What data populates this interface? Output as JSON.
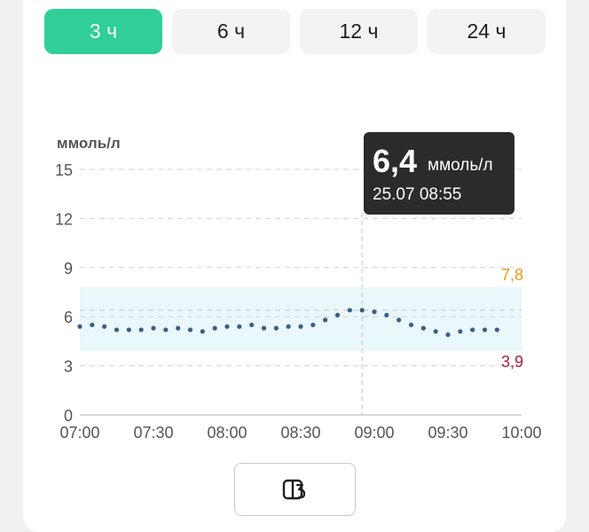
{
  "tabs": [
    {
      "label": "3 ч",
      "active": true
    },
    {
      "label": "6 ч",
      "active": false
    },
    {
      "label": "12 ч",
      "active": false
    },
    {
      "label": "24 ч",
      "active": false
    }
  ],
  "colors": {
    "accent": "#2fcf97",
    "upper_limit": "#e89a1c",
    "lower_limit": "#a3203f",
    "dots": "#3a5f86",
    "target_band": "#eaf7fb",
    "tooltip_bg": "#2b2b2b"
  },
  "tooltip": {
    "value": "6,4",
    "unit": "ммоль/л",
    "datetime": "25.07 08:55"
  },
  "chart_data": {
    "type": "scatter",
    "ylabel": "ммоль/л",
    "yticks": [
      "0",
      "3",
      "6",
      "9",
      "12",
      "15"
    ],
    "xticks": [
      "07:00",
      "07:30",
      "08:00",
      "08:30",
      "09:00",
      "09:30",
      "10:00"
    ],
    "ylim": [
      0,
      15
    ],
    "xlim": [
      "07:00",
      "10:00"
    ],
    "grid": true,
    "target_range": {
      "low": 3.9,
      "high": 7.8,
      "low_label": "3,9",
      "high_label": "7,8"
    },
    "selected": {
      "x": "08:55",
      "y": 6.4
    },
    "points": [
      {
        "x": "07:00",
        "y": 5.4
      },
      {
        "x": "07:05",
        "y": 5.5
      },
      {
        "x": "07:10",
        "y": 5.4
      },
      {
        "x": "07:15",
        "y": 5.2
      },
      {
        "x": "07:20",
        "y": 5.2
      },
      {
        "x": "07:25",
        "y": 5.2
      },
      {
        "x": "07:30",
        "y": 5.3
      },
      {
        "x": "07:35",
        "y": 5.2
      },
      {
        "x": "07:40",
        "y": 5.3
      },
      {
        "x": "07:45",
        "y": 5.2
      },
      {
        "x": "07:50",
        "y": 5.1
      },
      {
        "x": "07:55",
        "y": 5.3
      },
      {
        "x": "08:00",
        "y": 5.4
      },
      {
        "x": "08:05",
        "y": 5.4
      },
      {
        "x": "08:10",
        "y": 5.5
      },
      {
        "x": "08:15",
        "y": 5.3
      },
      {
        "x": "08:20",
        "y": 5.3
      },
      {
        "x": "08:25",
        "y": 5.4
      },
      {
        "x": "08:30",
        "y": 5.4
      },
      {
        "x": "08:35",
        "y": 5.5
      },
      {
        "x": "08:40",
        "y": 5.8
      },
      {
        "x": "08:45",
        "y": 6.1
      },
      {
        "x": "08:50",
        "y": 6.4
      },
      {
        "x": "08:55",
        "y": 6.4
      },
      {
        "x": "09:00",
        "y": 6.3
      },
      {
        "x": "09:05",
        "y": 6.1
      },
      {
        "x": "09:10",
        "y": 5.8
      },
      {
        "x": "09:15",
        "y": 5.5
      },
      {
        "x": "09:20",
        "y": 5.3
      },
      {
        "x": "09:25",
        "y": 5.1
      },
      {
        "x": "09:30",
        "y": 4.9
      },
      {
        "x": "09:35",
        "y": 5.1
      },
      {
        "x": "09:40",
        "y": 5.2
      },
      {
        "x": "09:45",
        "y": 5.2
      },
      {
        "x": "09:50",
        "y": 5.2
      }
    ]
  },
  "icon_button": {
    "icon": "split-view-icon"
  }
}
